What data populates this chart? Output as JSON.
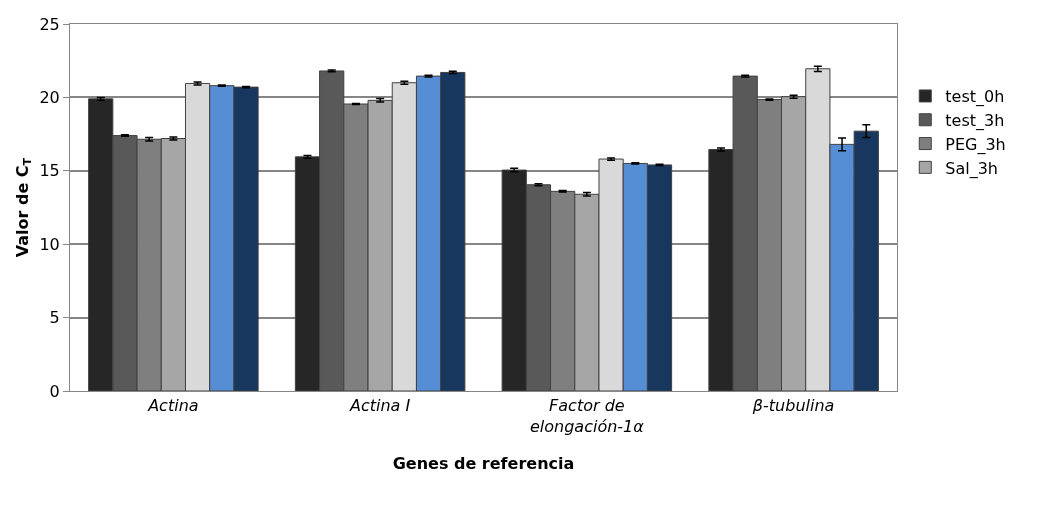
{
  "chart_data": {
    "type": "bar",
    "xlabel": "Genes de referencia",
    "ylabel": "Valor de C$_{T}$",
    "categories": [
      "Actina",
      "Actina I",
      "Factor de elongación-1α",
      "β-tubulina"
    ],
    "series": [
      {
        "name": "test_0h",
        "color": "#262626",
        "values": [
          19.9,
          15.95,
          15.05,
          16.45
        ],
        "errors": [
          0.1,
          0.1,
          0.12,
          0.1
        ]
      },
      {
        "name": "test_3h",
        "color": "#595959",
        "values": [
          17.4,
          21.8,
          14.05,
          21.45
        ],
        "errors": [
          0.05,
          0.06,
          0.06,
          0.06
        ]
      },
      {
        "name": "PEG_3h",
        "color": "#7f7f7f",
        "values": [
          17.15,
          19.55,
          13.6,
          19.85
        ],
        "errors": [
          0.12,
          0.04,
          0.05,
          0.04
        ]
      },
      {
        "name": "Sal_3h",
        "color": "#a6a6a6",
        "values": [
          17.2,
          19.8,
          13.4,
          20.05
        ],
        "errors": [
          0.1,
          0.12,
          0.12,
          0.1
        ]
      },
      {
        "color": "#d9d9d9",
        "values": [
          20.95,
          21.0,
          15.8,
          21.95
        ],
        "errors": [
          0.1,
          0.1,
          0.08,
          0.18
        ]
      },
      {
        "color": "#558ed5",
        "values": [
          20.8,
          21.45,
          15.5,
          16.8
        ],
        "errors": [
          0.04,
          0.06,
          0.04,
          0.44
        ]
      },
      {
        "color": "#17375e",
        "values": [
          20.7,
          21.7,
          15.4,
          17.7
        ],
        "errors": [
          0.04,
          0.08,
          0.04,
          0.43
        ]
      }
    ],
    "ylim": [
      0,
      25
    ],
    "yticks": [
      0,
      5,
      10,
      15,
      20,
      25
    ],
    "grid": "y",
    "legend": "right"
  }
}
